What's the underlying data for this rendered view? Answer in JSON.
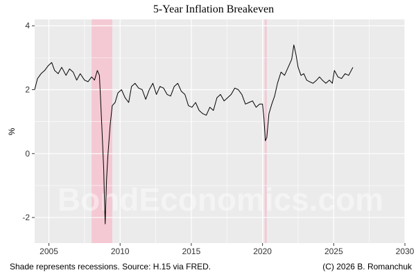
{
  "chart_data": {
    "type": "line",
    "title": "5-Year Inflation Breakeven",
    "xlabel": "",
    "ylabel": "%",
    "xlim": [
      2004.0,
      2030.0
    ],
    "ylim": [
      -2.8,
      4.2
    ],
    "x_ticks": [
      2005,
      2010,
      2015,
      2020,
      2025,
      2030
    ],
    "y_ticks": [
      -2,
      0,
      2,
      4
    ],
    "grid": true,
    "legend": "none",
    "recessions": [
      [
        2008.0,
        2009.45
      ],
      [
        2020.15,
        2020.3
      ]
    ],
    "series": [
      {
        "name": "",
        "x": [
          2004.0,
          2004.2,
          2004.45,
          2004.7,
          2004.95,
          2005.2,
          2005.4,
          2005.65,
          2005.9,
          2006.2,
          2006.45,
          2006.7,
          2006.95,
          2007.2,
          2007.5,
          2007.75,
          2008.0,
          2008.2,
          2008.4,
          2008.55,
          2008.65,
          2008.75,
          2008.85,
          2008.9,
          2008.95,
          2009.05,
          2009.15,
          2009.3,
          2009.45,
          2009.65,
          2009.85,
          2010.1,
          2010.35,
          2010.6,
          2010.8,
          2011.05,
          2011.3,
          2011.55,
          2011.8,
          2012.05,
          2012.3,
          2012.55,
          2012.8,
          2013.05,
          2013.3,
          2013.55,
          2013.8,
          2014.05,
          2014.3,
          2014.55,
          2014.8,
          2015.05,
          2015.3,
          2015.55,
          2015.8,
          2016.05,
          2016.3,
          2016.55,
          2016.8,
          2017.05,
          2017.3,
          2017.55,
          2017.8,
          2018.05,
          2018.3,
          2018.55,
          2018.8,
          2019.05,
          2019.3,
          2019.55,
          2019.8,
          2020.0,
          2020.1,
          2020.2,
          2020.3,
          2020.45,
          2020.65,
          2020.85,
          2021.05,
          2021.3,
          2021.55,
          2021.8,
          2022.05,
          2022.2,
          2022.35,
          2022.5,
          2022.7,
          2022.9,
          2023.1,
          2023.3,
          2023.55,
          2023.8,
          2024.0,
          2024.2,
          2024.45,
          2024.7,
          2024.9,
          2025.05,
          2025.3,
          2025.55,
          2025.8,
          2026.05,
          2026.35
        ],
        "y": [
          2.0,
          2.35,
          2.5,
          2.6,
          2.75,
          2.85,
          2.6,
          2.5,
          2.7,
          2.45,
          2.65,
          2.55,
          2.3,
          2.5,
          2.3,
          2.25,
          2.4,
          2.3,
          2.6,
          2.45,
          1.5,
          0.5,
          -0.5,
          -1.4,
          -2.2,
          -0.8,
          0.0,
          0.9,
          1.5,
          1.6,
          1.9,
          2.0,
          1.75,
          1.6,
          2.1,
          2.2,
          2.05,
          2.0,
          1.7,
          2.0,
          2.2,
          1.85,
          2.1,
          2.05,
          1.85,
          1.8,
          2.1,
          2.2,
          1.95,
          1.85,
          1.5,
          1.45,
          1.6,
          1.35,
          1.25,
          1.2,
          1.45,
          1.35,
          1.75,
          1.85,
          1.65,
          1.75,
          1.85,
          2.05,
          2.0,
          1.85,
          1.55,
          1.6,
          1.65,
          1.45,
          1.55,
          1.55,
          1.1,
          0.4,
          0.5,
          1.25,
          1.55,
          1.8,
          2.2,
          2.55,
          2.45,
          2.7,
          2.95,
          3.4,
          3.1,
          2.7,
          2.45,
          2.5,
          2.3,
          2.25,
          2.2,
          2.3,
          2.4,
          2.3,
          2.2,
          2.3,
          2.2,
          2.6,
          2.4,
          2.35,
          2.5,
          2.45,
          2.7
        ],
        "color": "#000000"
      }
    ]
  },
  "caption": {
    "left": "Shade represents recessions. Source: H.15 via FRED.",
    "right": "(C) 2026 B. Romanchuk"
  },
  "watermark": "BondEconomics.com",
  "colors": {
    "panel_background": "#ebebeb",
    "grid": "#ffffff",
    "recession": "#f4c9d3",
    "line": "#000000"
  }
}
